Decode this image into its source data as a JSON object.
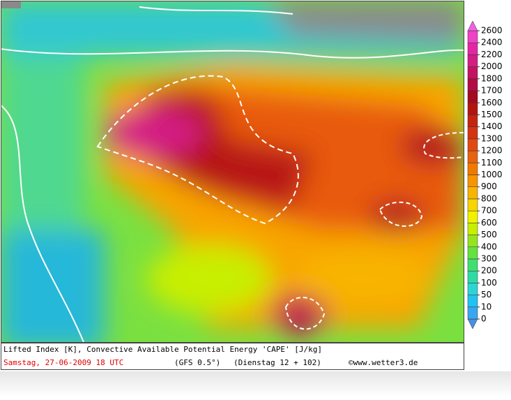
{
  "map": {
    "caption": "Lifted Index [K], Convective Available Potential Energy 'CAPE' [J/kg]",
    "date": "Samstag, 27-06-2009  18 UTC",
    "model": "(GFS 0.5°)",
    "run": "(Dienstag 12 + 102)",
    "credit": "©www.wetter3.de"
  },
  "legend": {
    "ticks": [
      0,
      10,
      50,
      100,
      200,
      300,
      400,
      500,
      600,
      700,
      800,
      900,
      1000,
      1100,
      1200,
      1300,
      1400,
      1500,
      1600,
      1700,
      1800,
      2000,
      2200,
      2400,
      2600
    ],
    "colors": [
      "#4a8fe0",
      "#3aa6f2",
      "#22c2f2",
      "#2ed4d4",
      "#30daa4",
      "#40e070",
      "#64e240",
      "#96e420",
      "#c8ee00",
      "#f2f200",
      "#f8d400",
      "#f8b400",
      "#f89400",
      "#f07a00",
      "#e86210",
      "#e04a10",
      "#d43410",
      "#c42410",
      "#b41410",
      "#a40a20",
      "#b40a44",
      "#c41262",
      "#d41c84",
      "#e426a4",
      "#f042c4",
      "#f060e0"
    ]
  }
}
